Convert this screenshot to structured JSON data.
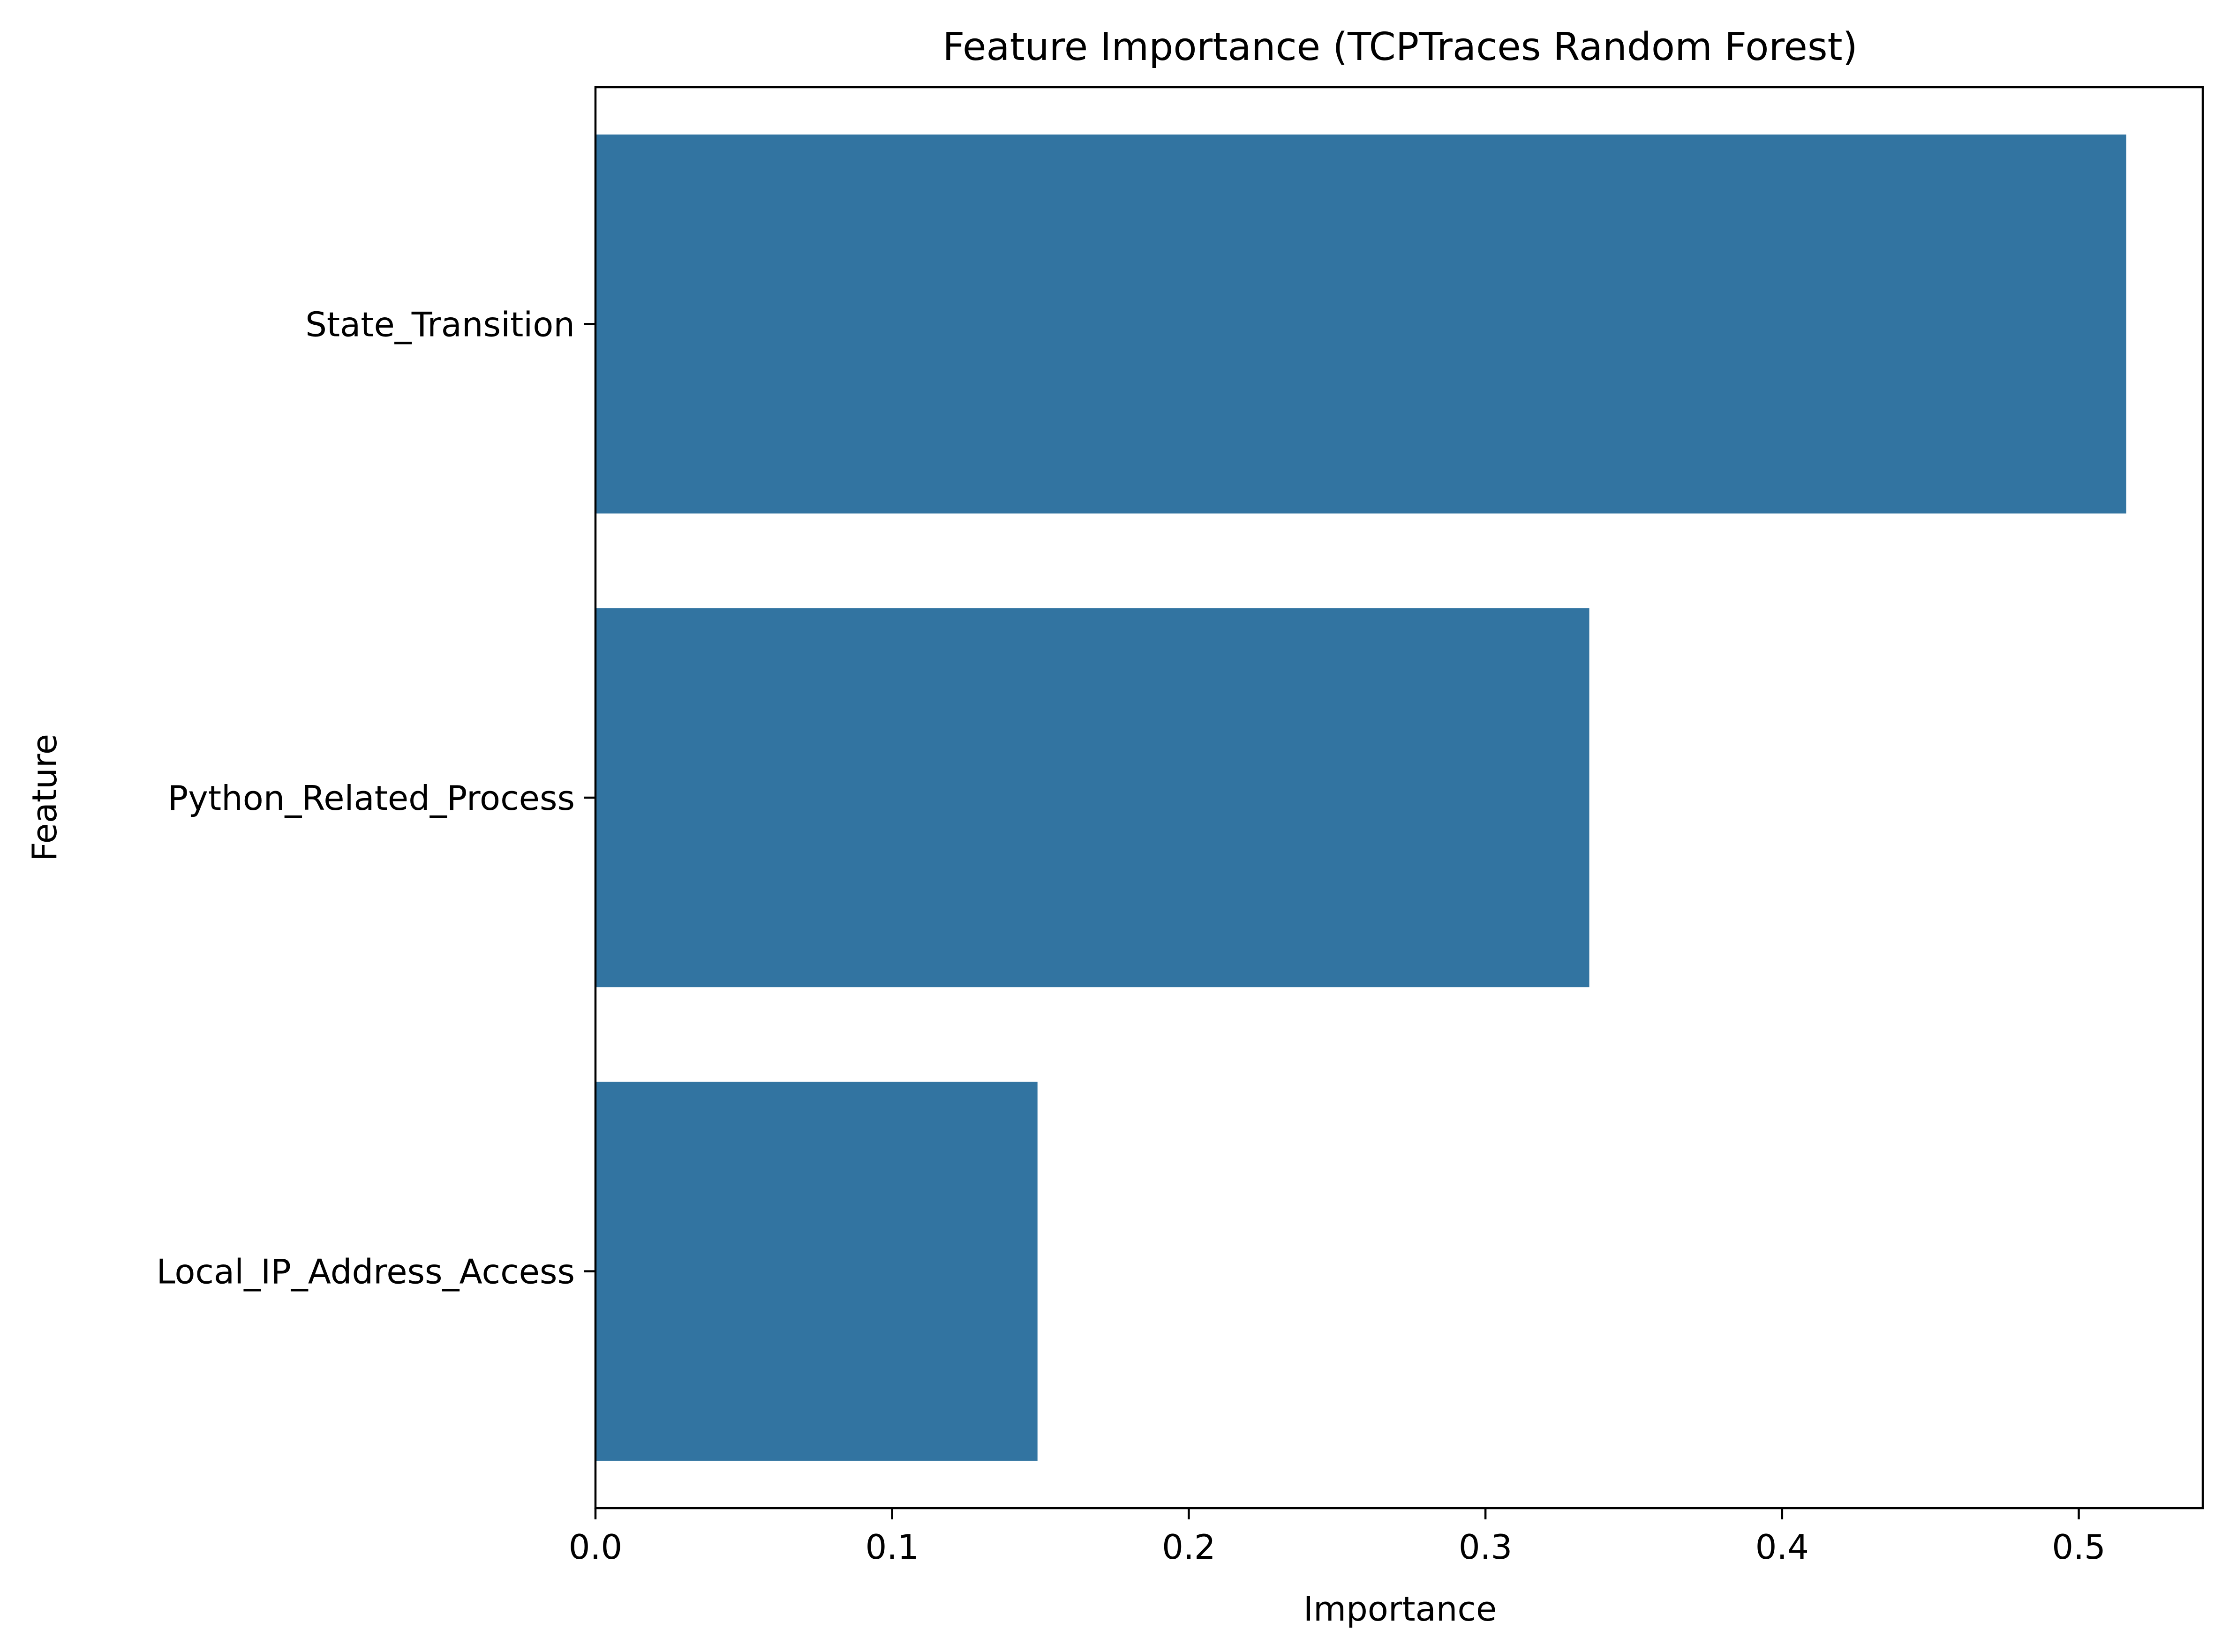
{
  "chart_data": {
    "type": "bar",
    "orientation": "horizontal",
    "title": "Feature Importance (TCPTraces Random Forest)",
    "xlabel": "Importance",
    "ylabel": "Feature",
    "categories": [
      "State_Transition",
      "Python_Related_Process",
      "Local_IP_Address_Access"
    ],
    "values": [
      0.516,
      0.335,
      0.149
    ],
    "xlim": [
      0.0,
      0.5418
    ],
    "xticks": [
      0.0,
      0.1,
      0.2,
      0.3,
      0.4,
      0.5
    ],
    "xtick_labels": [
      "0.0",
      "0.1",
      "0.2",
      "0.3",
      "0.4",
      "0.5"
    ],
    "bar_color": "#3274a1",
    "grid": false,
    "legend": "none"
  }
}
